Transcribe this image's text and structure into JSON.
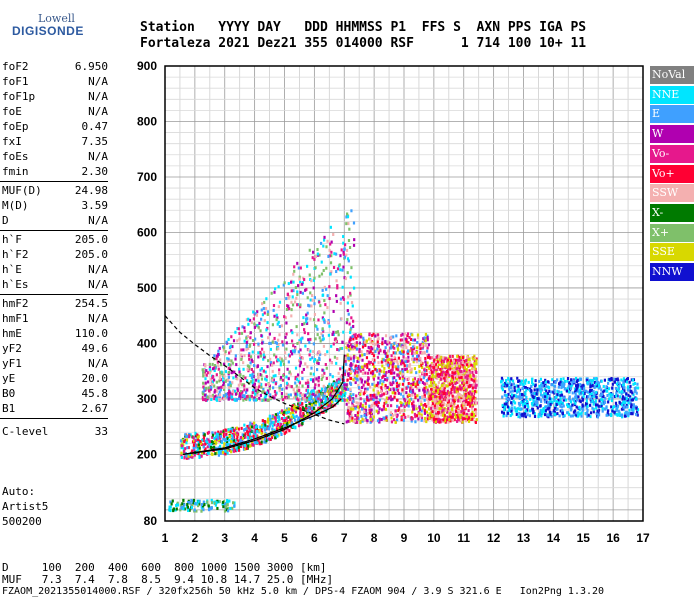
{
  "logo": {
    "lowell": "Lowell",
    "digisonde": "DIGISONDE"
  },
  "header": {
    "labels": "Station   YYYY DAY   DDD HHMMSS P1  FFS S  AXN PPS IGA PS",
    "values": "Fortaleza 2021 Dez21 355 014000 RSF      1 714 100 10+ 11"
  },
  "params": [
    {
      "name": "foF2",
      "value": "6.950"
    },
    {
      "name": "foF1",
      "value": "N/A"
    },
    {
      "name": "foF1p",
      "value": "N/A"
    },
    {
      "name": "foE",
      "value": "N/A"
    },
    {
      "name": "foEp",
      "value": "0.47"
    },
    {
      "name": "fxI",
      "value": "7.35"
    },
    {
      "name": "foEs",
      "value": "N/A"
    },
    {
      "name": "fmin",
      "value": "2.30"
    },
    {
      "name": "MUF(D)",
      "value": "24.98"
    },
    {
      "name": "M(D)",
      "value": "3.59"
    },
    {
      "name": "D",
      "value": "N/A"
    },
    {
      "name": "h`F",
      "value": "205.0"
    },
    {
      "name": "h`F2",
      "value": "205.0"
    },
    {
      "name": "h`E",
      "value": "N/A"
    },
    {
      "name": "h`Es",
      "value": "N/A"
    },
    {
      "name": "hmF2",
      "value": "254.5"
    },
    {
      "name": "hmF1",
      "value": "N/A"
    },
    {
      "name": "hmE",
      "value": "110.0"
    },
    {
      "name": "yF2",
      "value": "49.6"
    },
    {
      "name": "yF1",
      "value": "N/A"
    },
    {
      "name": "yE",
      "value": "20.0"
    },
    {
      "name": "B0",
      "value": "45.8"
    },
    {
      "name": "B1",
      "value": "2.67"
    },
    {
      "name": "C-level",
      "value": "33"
    }
  ],
  "auto": {
    "line1": "Auto:",
    "line2": "Artist5",
    "line3": "500200"
  },
  "footer": {
    "d_row": "D     100  200  400  600  800 1000 1500 3000 [km]",
    "muf_row": "MUF   7.3  7.4  7.8  8.5  9.4 10.8 14.7 25.0 [MHz]",
    "file_row": "FZAOM_2021355014000.RSF / 320fx256h 50 kHz 5.0 km / DPS-4 FZAOM 904 / 3.9 S 321.6 E   Ion2Png 1.3.20"
  },
  "legend": [
    {
      "label": "NoVal",
      "color": "#808080"
    },
    {
      "label": "NNE",
      "color": "#00e5ff"
    },
    {
      "label": "E",
      "color": "#3fa0ff"
    },
    {
      "label": "W",
      "color": "#b000b0"
    },
    {
      "label": "Vo-",
      "color": "#e6188c"
    },
    {
      "label": "Vo+",
      "color": "#ff0033"
    },
    {
      "label": "SSW",
      "color": "#f4b0b0"
    },
    {
      "label": "X-",
      "color": "#007a00"
    },
    {
      "label": "X+",
      "color": "#7fc06a"
    },
    {
      "label": "SSE",
      "color": "#d8d800"
    },
    {
      "label": "NNW",
      "color": "#1010d0"
    }
  ],
  "chart_data": {
    "type": "scatter",
    "title": "",
    "xlabel": "",
    "ylabel": "",
    "x_range": [
      1,
      17
    ],
    "y_range": [
      80,
      900
    ],
    "x_ticks": [
      "1",
      "2",
      "3",
      "4",
      "5",
      "6",
      "7",
      "8",
      "9",
      "10",
      "11",
      "12",
      "13",
      "14",
      "15",
      "16",
      "17"
    ],
    "y_ticks": [
      "200",
      "300",
      "400",
      "500",
      "600",
      "700",
      "800",
      "900"
    ],
    "y_tick_values": [
      200,
      300,
      400,
      500,
      600,
      700,
      800,
      900
    ],
    "y_bottom_label": "80",
    "grid": true,
    "legend_position": "right",
    "echo_regions": [
      {
        "name": "F-trace-low",
        "x": [
          1.5,
          7.0
        ],
        "y": [
          190,
          330
        ],
        "colors": [
          "#ff0033",
          "#e6188c",
          "#3fa0ff",
          "#007a00",
          "#d8d800",
          "#00e5ff"
        ]
      },
      {
        "name": "F-spread-high",
        "x": [
          2.2,
          7.3
        ],
        "y": [
          300,
          680
        ],
        "colors": [
          "#e6188c",
          "#b000b0",
          "#7fc06a",
          "#f4b0b0",
          "#3fa0ff",
          "#00e5ff"
        ]
      },
      {
        "name": "mid-spread",
        "x": [
          7.0,
          9.8
        ],
        "y": [
          260,
          420
        ],
        "colors": [
          "#d8d800",
          "#b000b0",
          "#ff0033",
          "#e6188c",
          "#3fa0ff",
          "#f4b0b0"
        ]
      },
      {
        "name": "upper-spread",
        "x": [
          9.8,
          11.4
        ],
        "y": [
          260,
          380
        ],
        "colors": [
          "#f4b0b0",
          "#ff0033",
          "#d8d800",
          "#e6188c"
        ]
      },
      {
        "name": "oblique",
        "x": [
          12.2,
          16.8
        ],
        "y": [
          270,
          340
        ],
        "colors": [
          "#1010d0",
          "#3fa0ff",
          "#00e5ff"
        ]
      },
      {
        "name": "E-layer",
        "x": [
          1.1,
          3.3
        ],
        "y": [
          100,
          120
        ],
        "colors": [
          "#3fa0ff",
          "#007a00",
          "#00e5ff",
          "#7fc06a"
        ]
      }
    ],
    "model_curves": [
      {
        "name": "o-trace",
        "points": [
          [
            1.6,
            200
          ],
          [
            3,
            210
          ],
          [
            4,
            225
          ],
          [
            5,
            245
          ],
          [
            6,
            275
          ],
          [
            6.6,
            300
          ],
          [
            6.95,
            330
          ],
          [
            7.0,
            380
          ]
        ]
      },
      {
        "name": "x-trace",
        "points": [
          [
            1.6,
            200
          ],
          [
            3,
            212
          ],
          [
            4,
            228
          ],
          [
            5,
            248
          ],
          [
            6,
            270
          ],
          [
            6.6,
            285
          ],
          [
            6.9,
            300
          ]
        ]
      },
      {
        "name": "profile-dashed",
        "points": [
          [
            1,
            450
          ],
          [
            1.5,
            420
          ],
          [
            2,
            398
          ],
          [
            2.5,
            378
          ],
          [
            3,
            360
          ],
          [
            3.5,
            340
          ],
          [
            4,
            320
          ],
          [
            4.5,
            305
          ],
          [
            5,
            292
          ],
          [
            5.5,
            282
          ],
          [
            6,
            272
          ],
          [
            6.5,
            262
          ],
          [
            7,
            255
          ]
        ]
      }
    ]
  }
}
